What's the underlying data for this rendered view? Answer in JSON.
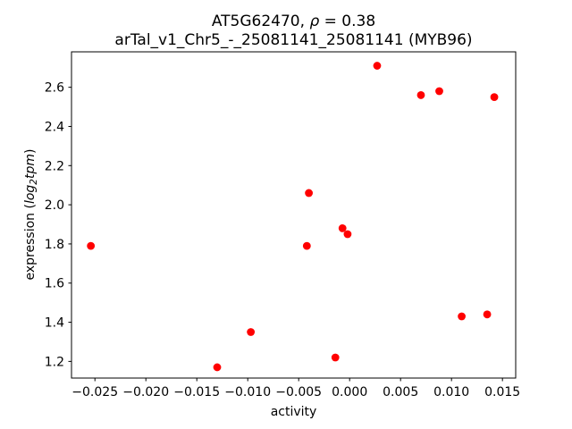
{
  "title": {
    "part1": "AT5G62470, ",
    "rho": "ρ",
    "part2": " = 0.38",
    "line2": "arTal_v1_Chr5_-_25081141_25081141 (MYB96)"
  },
  "ylabel_parts": {
    "prefix": "expression (",
    "log": "log",
    "sub": "2",
    "tpm": "tpm",
    "suffix": ")"
  },
  "chart_data": {
    "type": "scatter",
    "title": "AT5G62470, ρ = 0.38",
    "subtitle": "arTal_v1_Chr5_-_25081141_25081141 (MYB96)",
    "xlabel": "activity",
    "ylabel": "expression (log2tpm)",
    "legend": "none",
    "grid": false,
    "marker_color": "#ff0000",
    "marker_radius": 4.4,
    "xlim": [
      -0.0273,
      0.0163
    ],
    "ylim": [
      1.115,
      2.781
    ],
    "xticks": [
      -0.025,
      -0.02,
      -0.015,
      -0.01,
      -0.005,
      0.0,
      0.005,
      0.01,
      0.015
    ],
    "xtick_labels": [
      "−0.025",
      "−0.020",
      "−0.015",
      "−0.010",
      "−0.005",
      "0.000",
      "0.005",
      "0.010",
      "0.015"
    ],
    "yticks": [
      1.2,
      1.4,
      1.6,
      1.8,
      2.0,
      2.2,
      2.4,
      2.6
    ],
    "ytick_labels": [
      "1.2",
      "1.4",
      "1.6",
      "1.8",
      "2.0",
      "2.2",
      "2.4",
      "2.6"
    ],
    "points": [
      {
        "x": 0.0027,
        "y": 2.71
      },
      {
        "x": 0.007,
        "y": 2.56
      },
      {
        "x": 0.0088,
        "y": 2.58
      },
      {
        "x": 0.0142,
        "y": 2.55
      },
      {
        "x": -0.004,
        "y": 2.06
      },
      {
        "x": -0.0254,
        "y": 1.79
      },
      {
        "x": -0.0042,
        "y": 1.79
      },
      {
        "x": -0.0007,
        "y": 1.88
      },
      {
        "x": -0.0002,
        "y": 1.85
      },
      {
        "x": -0.0097,
        "y": 1.35
      },
      {
        "x": -0.013,
        "y": 1.17
      },
      {
        "x": -0.0014,
        "y": 1.22
      },
      {
        "x": 0.011,
        "y": 1.43
      },
      {
        "x": 0.0135,
        "y": 1.44
      }
    ]
  }
}
